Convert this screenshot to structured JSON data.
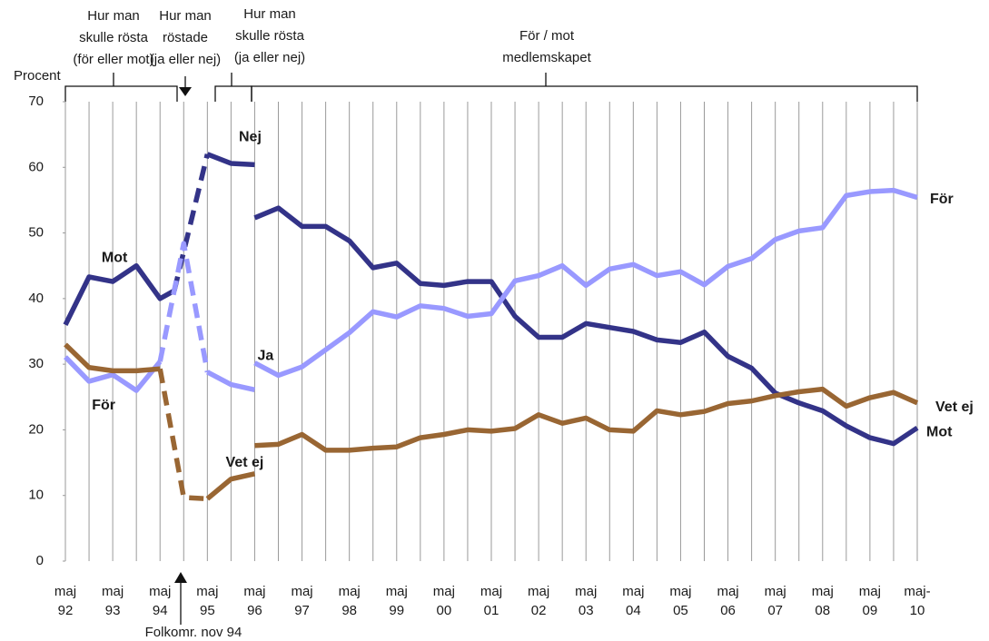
{
  "chart_data": {
    "type": "line",
    "y_label": "Procent",
    "xlim": [
      0,
      36
    ],
    "ylim": [
      0,
      70
    ],
    "yticks": [
      0,
      10,
      20,
      30,
      40,
      50,
      60,
      70
    ],
    "xticks": [
      {
        "value": 0,
        "label": "maj 92"
      },
      {
        "value": 2,
        "label": "maj 93"
      },
      {
        "value": 4,
        "label": "maj 94"
      },
      {
        "value": 6,
        "label": "maj 95"
      },
      {
        "value": 8,
        "label": "maj 96"
      },
      {
        "value": 10,
        "label": "maj 97"
      },
      {
        "value": 12,
        "label": "maj 98"
      },
      {
        "value": 14,
        "label": "maj 99"
      },
      {
        "value": 16,
        "label": "maj 00"
      },
      {
        "value": 18,
        "label": "maj 01"
      },
      {
        "value": 20,
        "label": "maj 02"
      },
      {
        "value": 22,
        "label": "maj 03"
      },
      {
        "value": 24,
        "label": "maj 04"
      },
      {
        "value": 26,
        "label": "maj 05"
      },
      {
        "value": 28,
        "label": "maj 06"
      },
      {
        "value": 30,
        "label": "maj 07"
      },
      {
        "value": 32,
        "label": "maj 08"
      },
      {
        "value": 34,
        "label": "maj 09"
      },
      {
        "value": 36,
        "label": "maj- 10"
      }
    ],
    "minor_grid": true,
    "annotations": [
      {
        "lines": [
          "Hur man",
          "skulle rösta",
          "(för eller mot)"
        ]
      },
      {
        "lines": [
          "Hur man",
          "röstade",
          "(ja eller nej)"
        ]
      },
      {
        "lines": [
          "Hur man",
          "skulle  rösta",
          "(ja eller nej)"
        ]
      },
      {
        "lines": [
          "För / mot",
          "medlemskapet"
        ]
      },
      {
        "lines": [
          "Folkomr. nov 94"
        ]
      }
    ],
    "series": [
      {
        "name": "Mot",
        "color": "#333388",
        "x": [
          0,
          1,
          2,
          3,
          4,
          4.6
        ],
        "values": [
          36.0,
          43.3,
          42.6,
          45.0,
          40.0,
          41.2
        ]
      },
      {
        "name": "För",
        "color": "#9999ff",
        "x": [
          0,
          1,
          2,
          3,
          4
        ],
        "values": [
          31.1,
          27.4,
          28.4,
          26.0,
          30.4
        ]
      },
      {
        "color": "#996633",
        "x": [
          0,
          1,
          2,
          3,
          4
        ],
        "values": [
          33.0,
          29.5,
          29.0,
          29.0,
          29.3
        ]
      },
      {
        "color": "#333388",
        "dashed": true,
        "x": [
          4.6,
          6
        ],
        "values": [
          41.2,
          62.0
        ]
      },
      {
        "color": "#9999ff",
        "dashed": true,
        "x": [
          4,
          5,
          6
        ],
        "values": [
          30.4,
          48.4,
          28.8
        ]
      },
      {
        "color": "#996633",
        "dashed": true,
        "x": [
          4,
          5,
          6
        ],
        "values": [
          29.3,
          9.7,
          9.5
        ]
      },
      {
        "name": "Nej",
        "color": "#333388",
        "x": [
          6,
          7,
          8
        ],
        "values": [
          62.0,
          60.6,
          60.4
        ]
      },
      {
        "name": "Ja",
        "color": "#9999ff",
        "x": [
          6,
          7,
          8
        ],
        "values": [
          28.8,
          26.9,
          26.1
        ]
      },
      {
        "name": "Vet ej",
        "color": "#996633",
        "x": [
          6,
          7,
          8
        ],
        "values": [
          9.5,
          12.5,
          13.3
        ]
      },
      {
        "name": "Mot",
        "color": "#333388",
        "x": [
          8,
          9,
          10,
          11,
          12,
          13,
          14,
          15,
          16,
          17,
          18,
          19,
          20,
          21,
          22,
          23,
          24,
          25,
          26,
          27,
          28,
          29,
          30,
          31,
          32,
          33,
          34,
          35,
          36
        ],
        "values": [
          52.3,
          53.8,
          51.0,
          51.0,
          48.8,
          44.7,
          45.4,
          42.3,
          42.0,
          42.6,
          42.6,
          37.3,
          34.1,
          34.1,
          36.2,
          35.6,
          35.0,
          33.7,
          33.3,
          34.9,
          31.2,
          29.4,
          25.6,
          24.1,
          22.9,
          20.6,
          18.8,
          17.9,
          20.3
        ]
      },
      {
        "name": "För",
        "color": "#9999ff",
        "x": [
          8,
          9,
          10,
          11,
          12,
          13,
          14,
          15,
          16,
          17,
          18,
          19,
          20,
          21,
          22,
          23,
          24,
          25,
          26,
          27,
          28,
          29,
          30,
          31,
          32,
          33,
          34,
          35,
          36
        ],
        "values": [
          30.2,
          28.3,
          29.6,
          32.2,
          34.8,
          38.0,
          37.2,
          38.9,
          38.5,
          37.3,
          37.7,
          42.7,
          43.5,
          45.0,
          42.0,
          44.5,
          45.2,
          43.5,
          44.1,
          42.1,
          44.9,
          46.1,
          49.0,
          50.3,
          50.8,
          55.7,
          56.3,
          56.5,
          55.4
        ]
      },
      {
        "name": "Vet ej",
        "color": "#996633",
        "x": [
          8,
          9,
          10,
          11,
          12,
          13,
          14,
          15,
          16,
          17,
          18,
          19,
          20,
          21,
          22,
          23,
          24,
          25,
          26,
          27,
          28,
          29,
          30,
          31,
          32,
          33,
          34,
          35,
          36
        ],
        "values": [
          17.6,
          17.8,
          19.3,
          16.9,
          16.9,
          17.2,
          17.4,
          18.8,
          19.3,
          20.0,
          19.8,
          20.2,
          22.3,
          21.0,
          21.8,
          20.0,
          19.8,
          22.9,
          22.3,
          22.8,
          24.0,
          24.4,
          25.2,
          25.8,
          26.2,
          23.6,
          24.9,
          25.7,
          24.1
        ]
      }
    ]
  }
}
